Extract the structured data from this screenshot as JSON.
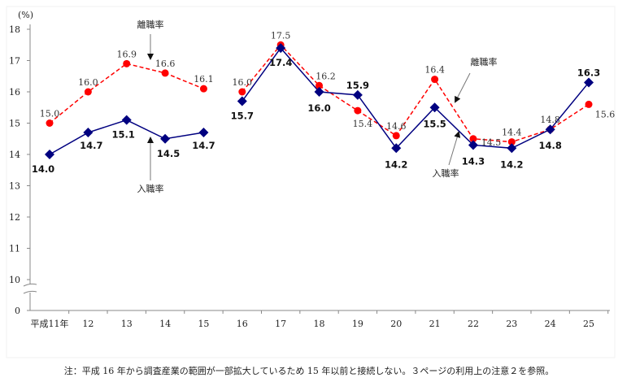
{
  "chart_data": {
    "type": "line",
    "unit_label": "(%)",
    "categories": [
      "平成11年",
      "12",
      "13",
      "14",
      "15",
      "16",
      "17",
      "18",
      "19",
      "20",
      "21",
      "22",
      "23",
      "24",
      "25"
    ],
    "yticks": [
      0,
      10,
      11,
      12,
      13,
      14,
      15,
      16,
      17,
      18
    ],
    "ylim": [
      0,
      18
    ],
    "axis_break": "between 0 and 10",
    "segment_gap_after": "15",
    "series": [
      {
        "name": "離職率",
        "color": "#ff0000",
        "style": "dashed",
        "marker": "circle",
        "values": [
          15.0,
          16.0,
          16.9,
          16.6,
          16.1,
          16.0,
          17.5,
          16.2,
          15.4,
          14.6,
          16.4,
          14.5,
          14.4,
          14.8,
          15.6
        ],
        "labels": [
          "15.0",
          "16.0",
          "16.9",
          "16.6",
          "16.1",
          "16.0",
          "17.5",
          "16.2",
          "15.4",
          "14.6",
          "16.4",
          "14.5",
          "14.4",
          "14.8",
          "15.6"
        ]
      },
      {
        "name": "入職率",
        "color": "#000080",
        "style": "solid",
        "marker": "diamond",
        "values": [
          14.0,
          14.7,
          15.1,
          14.5,
          14.7,
          15.7,
          17.4,
          16.0,
          15.9,
          14.2,
          15.5,
          14.3,
          14.2,
          14.8,
          16.3
        ],
        "labels": [
          "14.0",
          "14.7",
          "15.1",
          "14.5",
          "14.7",
          "15.7",
          "17.4",
          "16.0",
          "15.9",
          "14.2",
          "15.5",
          "14.3",
          "14.2",
          "14.8",
          "16.3"
        ]
      }
    ],
    "annotations": [
      "離職率",
      "入職率",
      "離職率",
      "入職率"
    ]
  },
  "note": "注：平成 16 年から調査産業の範囲が一部拡大しているため 15 年以前と接続しない。３ページの利用上の注意２を参照。"
}
